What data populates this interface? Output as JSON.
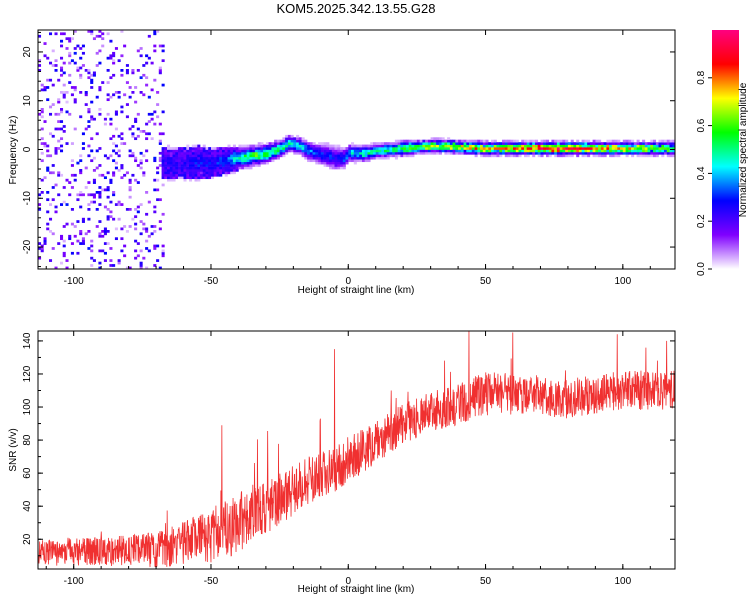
{
  "figure": {
    "title": "KOM5.2025.342.13.55.G28"
  },
  "chart_data": [
    {
      "type": "heatmap",
      "title": "KOM5.2025.342.13.55.G28",
      "xlabel": "Height of straight line (km)",
      "ylabel": "Frequency (Hz)",
      "xlim": [
        -113,
        119
      ],
      "ylim": [
        -24.5,
        24.5
      ],
      "xticks": [
        -100,
        -50,
        0,
        50,
        100
      ],
      "yticks": [
        -20,
        -10,
        0,
        10,
        20
      ],
      "colorbar": {
        "label": "Normalized spectral amplitude",
        "range": [
          0,
          1
        ],
        "ticks": [
          0.0,
          0.2,
          0.4,
          0.6,
          0.8
        ],
        "colors": [
          "#ffffff",
          "#8000ff",
          "#0000ff",
          "#00ffff",
          "#00ff00",
          "#ffff00",
          "#ff0000",
          "#ff0080"
        ]
      },
      "ridge": {
        "x": [
          -68,
          -60,
          -55,
          -50,
          -45,
          -40,
          -35,
          -30,
          -25,
          -22,
          -18,
          -15,
          -12,
          -8,
          -5,
          -2,
          0,
          5,
          10,
          20,
          30,
          40,
          50,
          60,
          70,
          80,
          90,
          100,
          110,
          119
        ],
        "frequency": [
          -3,
          -3,
          -3,
          -3,
          -2.5,
          -2,
          -1.5,
          -1,
          0,
          1,
          0.5,
          -0.5,
          -1,
          -1.5,
          -2,
          -2,
          -1,
          -1,
          -0.5,
          0,
          0.5,
          0.3,
          0,
          0,
          0,
          0,
          0,
          0,
          0,
          0
        ],
        "amplitude": [
          0.25,
          0.25,
          0.3,
          0.3,
          0.35,
          0.5,
          0.6,
          0.6,
          0.55,
          0.5,
          0.45,
          0.4,
          0.35,
          0.3,
          0.3,
          0.35,
          0.45,
          0.5,
          0.55,
          0.6,
          0.7,
          0.75,
          0.8,
          0.85,
          0.95,
          0.95,
          0.85,
          0.8,
          0.7,
          0.65
        ],
        "width_hz": [
          2.5,
          2.5,
          2.5,
          2.2,
          2,
          1.6,
          1.4,
          1.3,
          1.2,
          1.2,
          1.2,
          1.3,
          1.4,
          1.8,
          1.8,
          1.5,
          1.2,
          1.1,
          1.0,
          1.0,
          0.9,
          0.9,
          0.9,
          0.9,
          0.9,
          0.9,
          0.9,
          0.9,
          0.9,
          0.9
        ]
      },
      "noise": {
        "x_range": [
          -113,
          -68
        ],
        "amplitude_range": [
          0.02,
          0.3
        ]
      }
    },
    {
      "type": "line",
      "xlabel": "Height of straight line (km)",
      "ylabel": "SNR (v/v)",
      "xlim": [
        -113,
        119
      ],
      "ylim": [
        2,
        146
      ],
      "xticks": [
        -100,
        -50,
        0,
        50,
        100
      ],
      "yticks": [
        20,
        40,
        60,
        80,
        100,
        120,
        140
      ],
      "series": [
        {
          "color": "#f03030",
          "trend": {
            "x": [
              -113,
              -90,
              -75,
              -65,
              -55,
              -45,
              -35,
              -25,
              -15,
              -5,
              0,
              10,
              20,
              30,
              40,
              50,
              60,
              70,
              80,
              90,
              100,
              110,
              119
            ],
            "snr": [
              12,
              13,
              13,
              15,
              20,
              25,
              35,
              45,
              55,
              62,
              68,
              78,
              90,
              97,
              102,
              108,
              108,
              107,
              105,
              108,
              110,
              110,
              110
            ]
          },
          "noise_amplitude": [
            8,
            9,
            10,
            12,
            15,
            18,
            18,
            16,
            15,
            14,
            14,
            13,
            12,
            12,
            13,
            13,
            13,
            12,
            12,
            12,
            12,
            12,
            12
          ],
          "spikes": [
            {
              "x": -46,
              "snr": 89
            },
            {
              "x": -5,
              "snr": 135
            },
            {
              "x": 44,
              "snr": 146
            },
            {
              "x": 98,
              "snr": 144
            },
            {
              "x": 116,
              "snr": 140
            }
          ]
        }
      ]
    }
  ]
}
